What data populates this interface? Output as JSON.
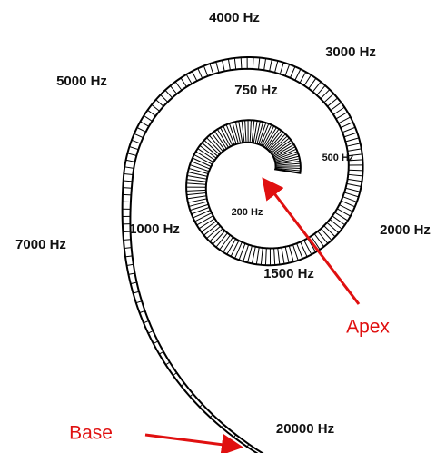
{
  "labels": {
    "f4000": "4000 Hz",
    "f3000": "3000 Hz",
    "f5000": "5000 Hz",
    "f750": "750 Hz",
    "f500": "500 Hz",
    "f7000": "7000 Hz",
    "f1000": "1000 Hz",
    "f200": "200 Hz",
    "f2000": "2000 Hz",
    "f1500": "1500 Hz",
    "f20000": "20000 Hz",
    "apex": "Apex",
    "base": "Base"
  }
}
